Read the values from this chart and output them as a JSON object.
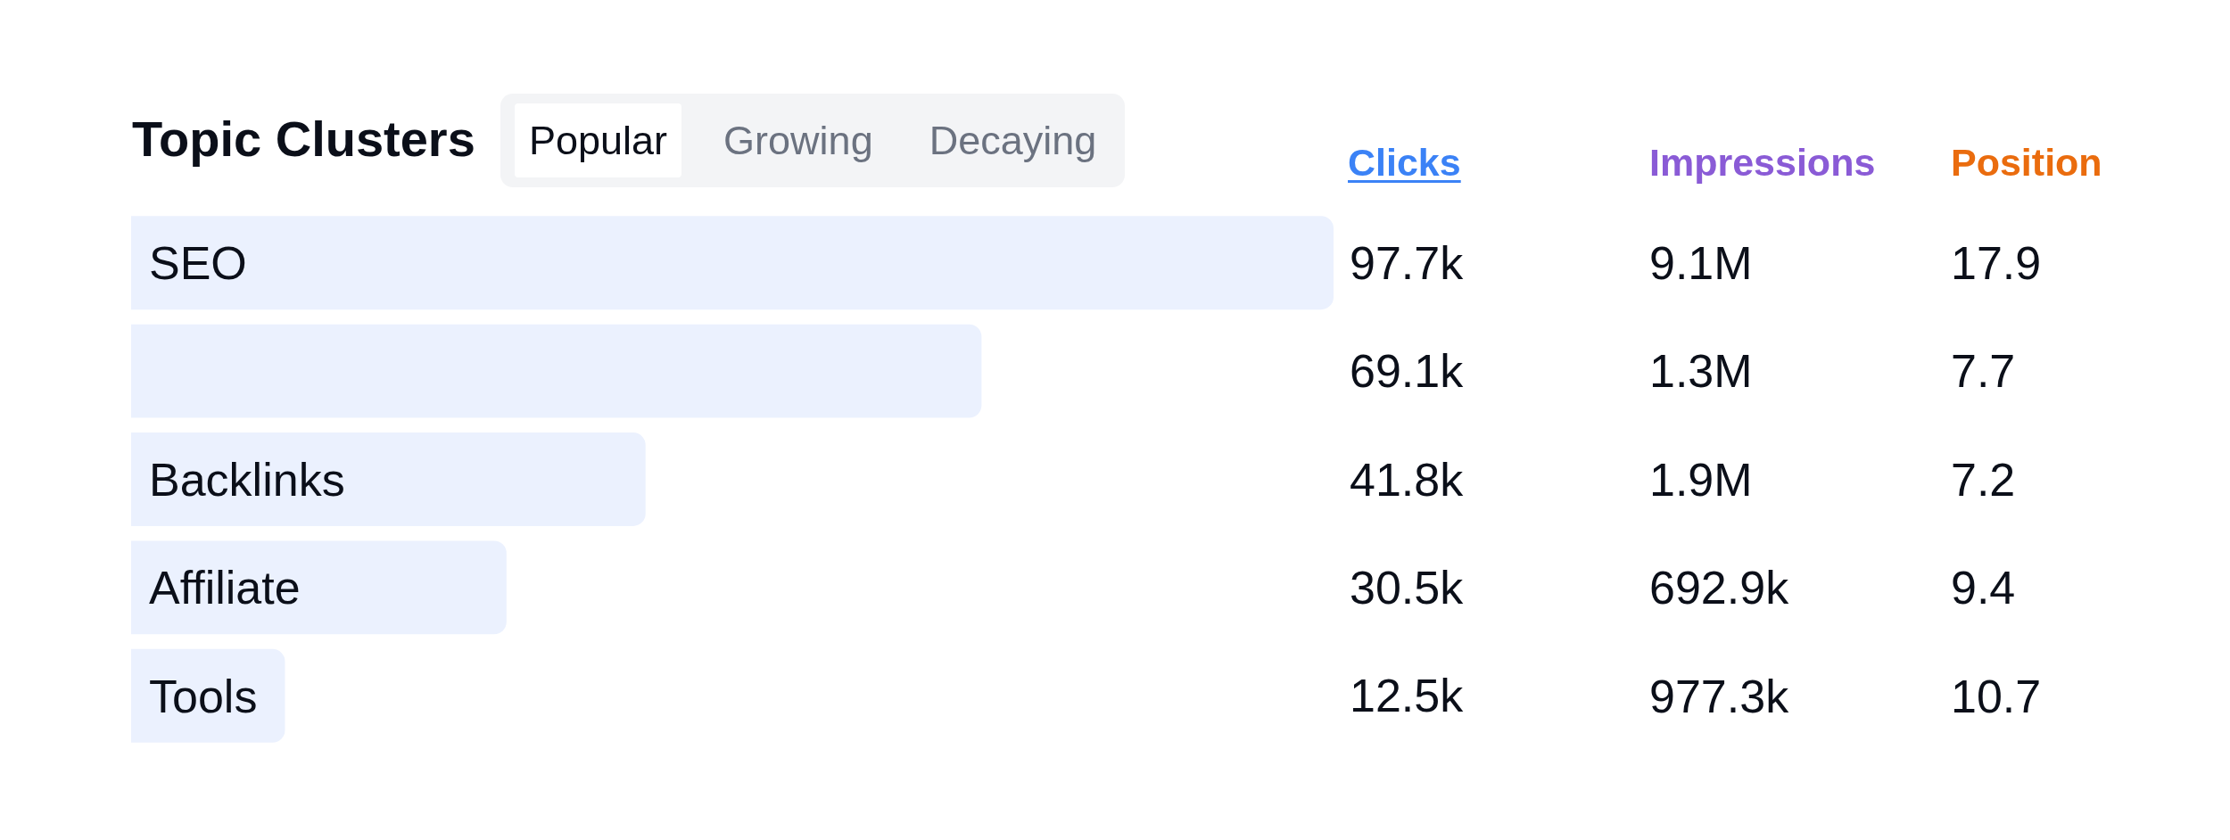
{
  "chart_data": [
    {
      "type": "bar",
      "orientation": "horizontal",
      "title": "Topic Clusters",
      "annotations": [
        "Popular",
        "Growing",
        "Decaying"
      ],
      "xlabel": "Clicks",
      "categories": [
        "SEO",
        null,
        "Backlinks",
        "Affiliate",
        "Tools"
      ],
      "values": [
        97.7,
        69.1,
        41.8,
        30.5,
        12.5
      ],
      "value_labels": [
        "97.7k",
        "69.1k",
        "41.8k",
        "30.5k",
        "12.5k"
      ],
      "color": "#ebf1fe",
      "xlim": [
        0,
        97.7
      ],
      "tick_labels": "y"
    },
    {
      "type": "other",
      "title": "Impressions",
      "annotations": [
        "9.1M",
        "1.3M",
        "1.9M",
        "692.9k",
        "977.3k"
      ]
    },
    {
      "type": "other",
      "title": "Position",
      "annotations": [
        "17.9",
        "7.7",
        "7.2",
        "9.4",
        "10.7"
      ]
    }
  ]
}
